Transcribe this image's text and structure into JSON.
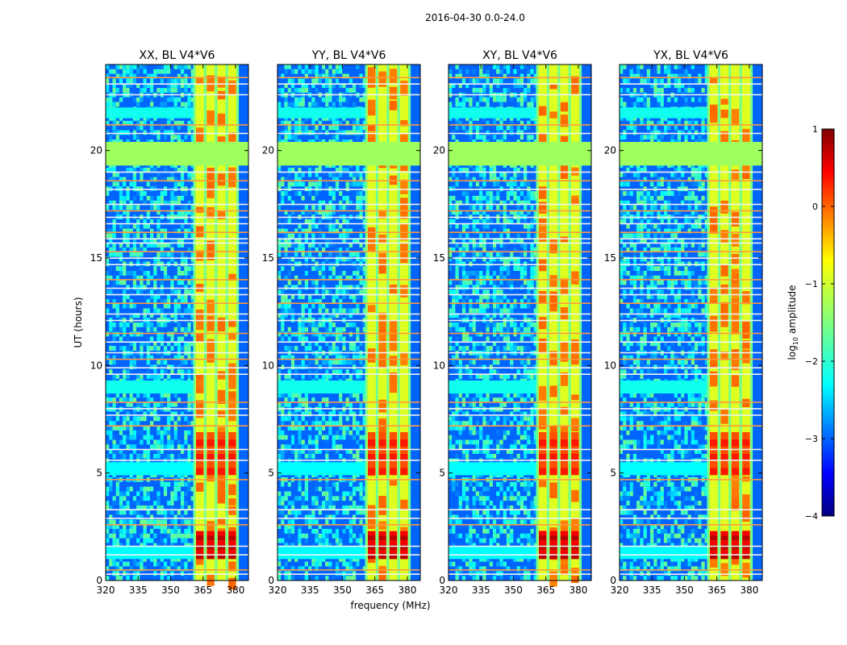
{
  "chart_data": {
    "type": "heatmap",
    "suptitle": "2016-04-30 0.0-24.0",
    "panels": [
      {
        "title": "XX, BL V4*V6",
        "pol": "XX"
      },
      {
        "title": "YY, BL V4*V6",
        "pol": "YY"
      },
      {
        "title": "XY, BL V4*V6",
        "pol": "XY"
      },
      {
        "title": "YX, BL V4*V6",
        "pol": "YX"
      }
    ],
    "xlabel": "frequency (MHz)",
    "ylabel": "UT (hours)",
    "xlim": [
      320,
      386
    ],
    "ylim": [
      0,
      24
    ],
    "xticks": [
      320,
      335,
      350,
      365,
      380
    ],
    "yticks": [
      0,
      5,
      10,
      15,
      20
    ],
    "colormap": "jet",
    "colorbar": {
      "label_main": "log",
      "label_sub": "10",
      "label_rest": " amplitude",
      "range": [
        -4,
        1
      ],
      "ticks": [
        1,
        0,
        -1,
        -2,
        -3,
        -4
      ]
    },
    "background_level": -3.0,
    "features": {
      "strong_band_mhz": [
        361,
        381
      ],
      "band_channel_edges_mhz": [
        361,
        366,
        371,
        376,
        381
      ],
      "flagged_block_hours": [
        19.3,
        20.4
      ],
      "flagged_level": -1.3,
      "strong_bursts_hours": [
        [
          1.0,
          2.3
        ],
        [
          4.9,
          6.9
        ]
      ],
      "mid_hours_enhanced": [
        [
          8.7,
          9.3
        ],
        [
          21.5,
          22.0
        ]
      ],
      "flagged_rows_hours": [
        0.3,
        0.5,
        1.2,
        1.6,
        2.6,
        2.9,
        3.3,
        4.7,
        5.6,
        6.1,
        7.2,
        7.7,
        8.0,
        8.3,
        9.6,
        9.9,
        10.3,
        10.6,
        11.1,
        11.5,
        12.1,
        12.4,
        12.9,
        13.3,
        13.6,
        14.0,
        14.7,
        15.0,
        15.3,
        15.7,
        15.9,
        16.2,
        16.6,
        16.9,
        17.2,
        17.5,
        18.2,
        18.6,
        19.0,
        20.8,
        21.2,
        22.6,
        23.1,
        23.4
      ]
    }
  }
}
